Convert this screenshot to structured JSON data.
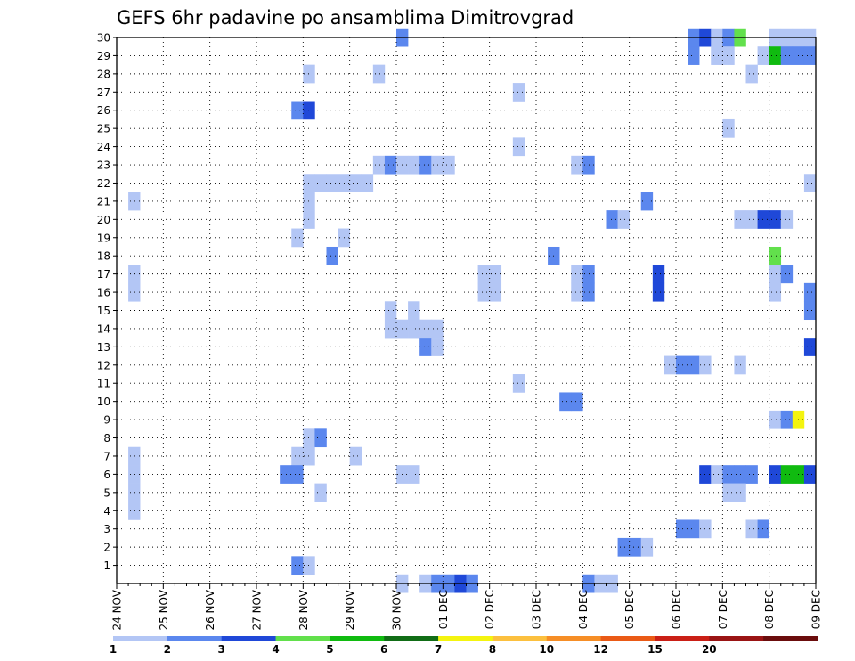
{
  "chart_data": {
    "type": "heatmap",
    "title": "GEFS 6hr padavine po ansamblima Dimitrovgrad",
    "xlabel": "",
    "ylabel": "",
    "x_tick_labels": [
      "24 NOV",
      "25 NOV",
      "26 NOV",
      "27 NOV",
      "28 NOV",
      "29 NOV",
      "30 NOV",
      "01 DEC",
      "02 DEC",
      "03 DEC",
      "04 DEC",
      "05 DEC",
      "06 DEC",
      "07 DEC",
      "08 DEC",
      "09 DEC"
    ],
    "x_unit": "6-hour step (4 per day), start 24 NOV 00",
    "xlim": [
      0,
      60
    ],
    "y_tick_labels": [
      "1",
      "2",
      "3",
      "4",
      "5",
      "6",
      "7",
      "8",
      "9",
      "10",
      "11",
      "12",
      "13",
      "14",
      "15",
      "16",
      "17",
      "18",
      "19",
      "20",
      "21",
      "22",
      "23",
      "24",
      "25",
      "26",
      "27",
      "28",
      "29",
      "30"
    ],
    "ylim": [
      0,
      30
    ],
    "grid": true,
    "legend_placement": "bottom",
    "levels": [
      {
        "min": 1,
        "color": "#b3c6f5"
      },
      {
        "min": 2,
        "color": "#5b87ee"
      },
      {
        "min": 3,
        "color": "#1f48d8"
      },
      {
        "min": 4,
        "color": "#62e04c"
      },
      {
        "min": 5,
        "color": "#10bb10"
      },
      {
        "min": 6,
        "color": "#116d16"
      },
      {
        "min": 7,
        "color": "#f4f40f"
      },
      {
        "min": 8,
        "color": "#fcc03e"
      },
      {
        "min": 10,
        "color": "#f68e26"
      },
      {
        "min": 12,
        "color": "#ea5a16"
      },
      {
        "min": 15,
        "color": "#ca1f16"
      },
      {
        "min": 20,
        "color": "#9a1414"
      },
      {
        "min": 25,
        "color": "#6b0d0d"
      }
    ],
    "legend_labels": [
      "1",
      "2",
      "3",
      "4",
      "5",
      "6",
      "7",
      "8",
      "10",
      "12",
      "15",
      "20"
    ],
    "cells": [
      {
        "member": 30,
        "step": 24,
        "value": 2
      },
      {
        "member": 30,
        "step": 49,
        "value": 2
      },
      {
        "member": 30,
        "step": 50,
        "value": 3
      },
      {
        "member": 30,
        "step": 51,
        "value": 1
      },
      {
        "member": 30,
        "step": 52,
        "value": 2
      },
      {
        "member": 30,
        "step": 53,
        "value": 4
      },
      {
        "member": 30,
        "step": 56,
        "value": 1
      },
      {
        "member": 30,
        "step": 57,
        "value": 1
      },
      {
        "member": 30,
        "step": 58,
        "value": 1
      },
      {
        "member": 30,
        "step": 59,
        "value": 1
      },
      {
        "member": 29,
        "step": 49,
        "value": 2
      },
      {
        "member": 29,
        "step": 51,
        "value": 1
      },
      {
        "member": 29,
        "step": 52,
        "value": 1
      },
      {
        "member": 29,
        "step": 55,
        "value": 1
      },
      {
        "member": 29,
        "step": 56,
        "value": 5
      },
      {
        "member": 29,
        "step": 57,
        "value": 2
      },
      {
        "member": 29,
        "step": 58,
        "value": 2
      },
      {
        "member": 29,
        "step": 59,
        "value": 2
      },
      {
        "member": 28,
        "step": 16,
        "value": 1
      },
      {
        "member": 28,
        "step": 22,
        "value": 1
      },
      {
        "member": 28,
        "step": 54,
        "value": 1
      },
      {
        "member": 27,
        "step": 34,
        "value": 1
      },
      {
        "member": 26,
        "step": 15,
        "value": 2
      },
      {
        "member": 26,
        "step": 16,
        "value": 3
      },
      {
        "member": 25,
        "step": 52,
        "value": 1
      },
      {
        "member": 24,
        "step": 34,
        "value": 1
      },
      {
        "member": 23,
        "step": 22,
        "value": 1
      },
      {
        "member": 23,
        "step": 23,
        "value": 2
      },
      {
        "member": 23,
        "step": 24,
        "value": 1
      },
      {
        "member": 23,
        "step": 25,
        "value": 1
      },
      {
        "member": 23,
        "step": 26,
        "value": 2
      },
      {
        "member": 23,
        "step": 27,
        "value": 1
      },
      {
        "member": 23,
        "step": 28,
        "value": 1
      },
      {
        "member": 23,
        "step": 39,
        "value": 1
      },
      {
        "member": 23,
        "step": 40,
        "value": 2
      },
      {
        "member": 22,
        "step": 16,
        "value": 1
      },
      {
        "member": 22,
        "step": 17,
        "value": 1
      },
      {
        "member": 22,
        "step": 18,
        "value": 1
      },
      {
        "member": 22,
        "step": 19,
        "value": 1
      },
      {
        "member": 22,
        "step": 20,
        "value": 1
      },
      {
        "member": 22,
        "step": 21,
        "value": 1
      },
      {
        "member": 22,
        "step": 59,
        "value": 1
      },
      {
        "member": 21,
        "step": 1,
        "value": 1
      },
      {
        "member": 21,
        "step": 16,
        "value": 1
      },
      {
        "member": 21,
        "step": 45,
        "value": 2
      },
      {
        "member": 20,
        "step": 16,
        "value": 1
      },
      {
        "member": 20,
        "step": 42,
        "value": 2
      },
      {
        "member": 20,
        "step": 43,
        "value": 1
      },
      {
        "member": 20,
        "step": 53,
        "value": 1
      },
      {
        "member": 20,
        "step": 54,
        "value": 1
      },
      {
        "member": 20,
        "step": 55,
        "value": 3
      },
      {
        "member": 20,
        "step": 56,
        "value": 3
      },
      {
        "member": 20,
        "step": 57,
        "value": 1
      },
      {
        "member": 19,
        "step": 15,
        "value": 1
      },
      {
        "member": 19,
        "step": 19,
        "value": 1
      },
      {
        "member": 18,
        "step": 18,
        "value": 2
      },
      {
        "member": 18,
        "step": 37,
        "value": 2
      },
      {
        "member": 18,
        "step": 56,
        "value": 4
      },
      {
        "member": 17,
        "step": 1,
        "value": 1
      },
      {
        "member": 17,
        "step": 31,
        "value": 1
      },
      {
        "member": 17,
        "step": 32,
        "value": 1
      },
      {
        "member": 17,
        "step": 39,
        "value": 1
      },
      {
        "member": 17,
        "step": 40,
        "value": 2
      },
      {
        "member": 17,
        "step": 46,
        "value": 3
      },
      {
        "member": 17,
        "step": 56,
        "value": 1
      },
      {
        "member": 17,
        "step": 57,
        "value": 2
      },
      {
        "member": 16,
        "step": 1,
        "value": 1
      },
      {
        "member": 16,
        "step": 31,
        "value": 1
      },
      {
        "member": 16,
        "step": 32,
        "value": 1
      },
      {
        "member": 16,
        "step": 39,
        "value": 1
      },
      {
        "member": 16,
        "step": 40,
        "value": 2
      },
      {
        "member": 16,
        "step": 46,
        "value": 3
      },
      {
        "member": 16,
        "step": 56,
        "value": 1
      },
      {
        "member": 16,
        "step": 59,
        "value": 2
      },
      {
        "member": 15,
        "step": 23,
        "value": 1
      },
      {
        "member": 15,
        "step": 25,
        "value": 1
      },
      {
        "member": 15,
        "step": 59,
        "value": 2
      },
      {
        "member": 14,
        "step": 23,
        "value": 1
      },
      {
        "member": 14,
        "step": 24,
        "value": 1
      },
      {
        "member": 14,
        "step": 25,
        "value": 1
      },
      {
        "member": 14,
        "step": 26,
        "value": 1
      },
      {
        "member": 14,
        "step": 27,
        "value": 1
      },
      {
        "member": 13,
        "step": 26,
        "value": 2
      },
      {
        "member": 13,
        "step": 27,
        "value": 1
      },
      {
        "member": 13,
        "step": 59,
        "value": 3
      },
      {
        "member": 12,
        "step": 47,
        "value": 1
      },
      {
        "member": 12,
        "step": 48,
        "value": 2
      },
      {
        "member": 12,
        "step": 49,
        "value": 2
      },
      {
        "member": 12,
        "step": 50,
        "value": 1
      },
      {
        "member": 12,
        "step": 53,
        "value": 1
      },
      {
        "member": 11,
        "step": 34,
        "value": 1
      },
      {
        "member": 10,
        "step": 38,
        "value": 2
      },
      {
        "member": 10,
        "step": 39,
        "value": 2
      },
      {
        "member": 9,
        "step": 56,
        "value": 1
      },
      {
        "member": 9,
        "step": 57,
        "value": 2
      },
      {
        "member": 9,
        "step": 58,
        "value": 7
      },
      {
        "member": 8,
        "step": 16,
        "value": 1
      },
      {
        "member": 8,
        "step": 17,
        "value": 2
      },
      {
        "member": 7,
        "step": 1,
        "value": 1
      },
      {
        "member": 7,
        "step": 15,
        "value": 1
      },
      {
        "member": 7,
        "step": 16,
        "value": 1
      },
      {
        "member": 7,
        "step": 20,
        "value": 1
      },
      {
        "member": 6,
        "step": 1,
        "value": 1
      },
      {
        "member": 6,
        "step": 14,
        "value": 2
      },
      {
        "member": 6,
        "step": 15,
        "value": 2
      },
      {
        "member": 6,
        "step": 24,
        "value": 1
      },
      {
        "member": 6,
        "step": 25,
        "value": 1
      },
      {
        "member": 6,
        "step": 50,
        "value": 3
      },
      {
        "member": 6,
        "step": 51,
        "value": 1
      },
      {
        "member": 6,
        "step": 52,
        "value": 2
      },
      {
        "member": 6,
        "step": 53,
        "value": 2
      },
      {
        "member": 6,
        "step": 54,
        "value": 2
      },
      {
        "member": 6,
        "step": 56,
        "value": 3
      },
      {
        "member": 6,
        "step": 57,
        "value": 5
      },
      {
        "member": 6,
        "step": 58,
        "value": 5
      },
      {
        "member": 6,
        "step": 59,
        "value": 3
      },
      {
        "member": 5,
        "step": 1,
        "value": 1
      },
      {
        "member": 5,
        "step": 17,
        "value": 1
      },
      {
        "member": 5,
        "step": 52,
        "value": 1
      },
      {
        "member": 5,
        "step": 53,
        "value": 1
      },
      {
        "member": 4,
        "step": 1,
        "value": 1
      },
      {
        "member": 3,
        "step": 48,
        "value": 2
      },
      {
        "member": 3,
        "step": 49,
        "value": 2
      },
      {
        "member": 3,
        "step": 50,
        "value": 1
      },
      {
        "member": 3,
        "step": 54,
        "value": 1
      },
      {
        "member": 3,
        "step": 55,
        "value": 2
      },
      {
        "member": 2,
        "step": 43,
        "value": 2
      },
      {
        "member": 2,
        "step": 44,
        "value": 2
      },
      {
        "member": 2,
        "step": 45,
        "value": 1
      },
      {
        "member": 1,
        "step": 15,
        "value": 2
      },
      {
        "member": 1,
        "step": 16,
        "value": 1
      },
      {
        "member": 0,
        "step": 24,
        "value": 1
      },
      {
        "member": 0,
        "step": 26,
        "value": 1
      },
      {
        "member": 0,
        "step": 27,
        "value": 2
      },
      {
        "member": 0,
        "step": 28,
        "value": 2
      },
      {
        "member": 0,
        "step": 29,
        "value": 3
      },
      {
        "member": 0,
        "step": 30,
        "value": 2
      },
      {
        "member": 0,
        "step": 40,
        "value": 2
      },
      {
        "member": 0,
        "step": 41,
        "value": 1
      },
      {
        "member": 0,
        "step": 42,
        "value": 1
      }
    ]
  }
}
